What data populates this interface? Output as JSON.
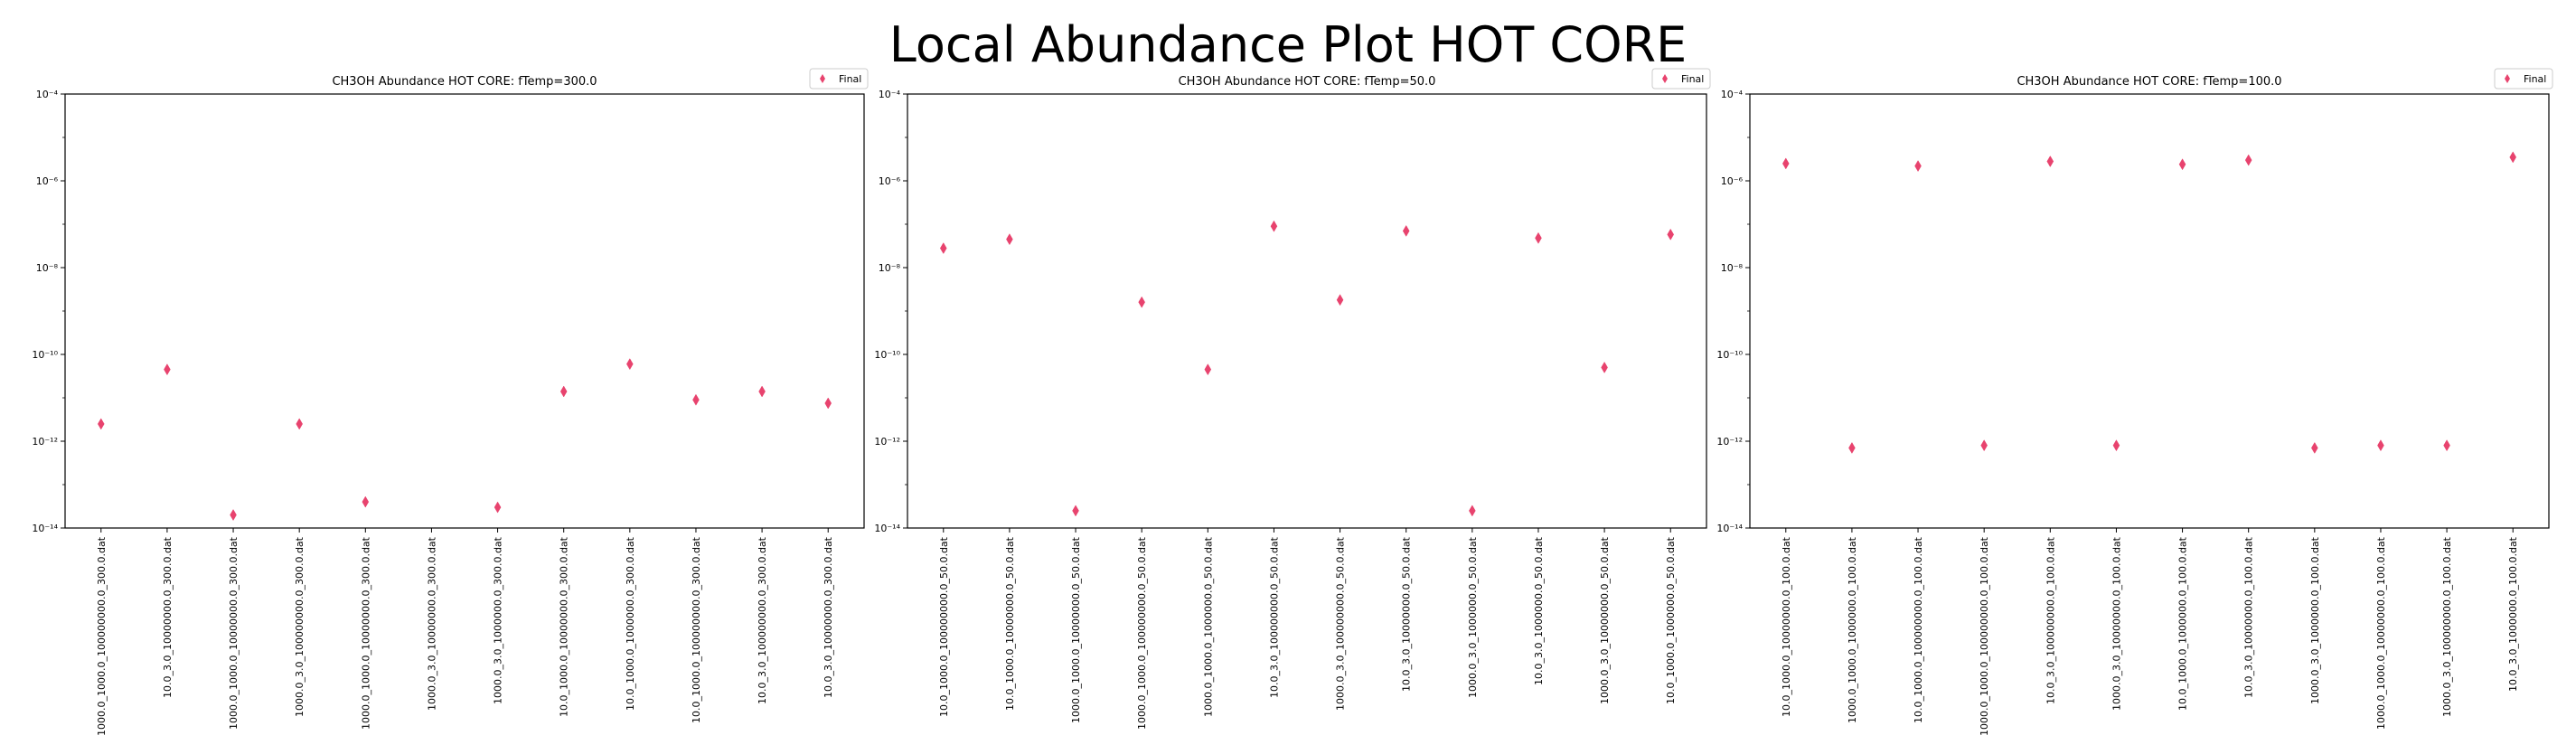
{
  "figure": {
    "suptitle": "Local Abundance Plot HOT CORE"
  },
  "chart_data": [
    {
      "type": "scatter",
      "title": "CH3OH Abundance HOT CORE: fTemp=300.0",
      "xlabel": "",
      "ylabel": "",
      "yscale": "log",
      "ylim": [
        1e-14,
        0.0001
      ],
      "y_ticks": [
        1e-14,
        1e-12,
        1e-10,
        1e-08,
        1e-06,
        0.0001
      ],
      "y_tick_labels": [
        "10⁻¹⁴",
        "10⁻¹²",
        "10⁻¹⁰",
        "10⁻⁸",
        "10⁻⁶",
        "10⁻⁴"
      ],
      "legend": {
        "position": "top-right",
        "entries": [
          "Final"
        ]
      },
      "marker_color": "#e8436e",
      "categories": [
        "1000.0_1000.0_100000000.0_300.0.dat",
        "10.0_3.0_10000000.0_300.0.dat",
        "1000.0_1000.0_10000000.0_300.0.dat",
        "1000.0_3.0_100000000.0_300.0.dat",
        "1000.0_1000.0_10000000.0_300.0.dat",
        "1000.0_3.0_10000000.0_300.0.dat",
        "1000.0_3.0_1000000.0_300.0.dat",
        "10.0_1000.0_10000000.0_300.0.dat",
        "10.0_1000.0_1000000.0_300.0.dat",
        "10.0_1000.0_100000000.0_300.0.dat",
        "10.0_3.0_100000000.0_300.0.dat",
        "10.0_3.0_10000000.0_300.0.dat"
      ],
      "series": [
        {
          "name": "Final",
          "values": [
            2.5e-12,
            4.5e-11,
            2e-14,
            2.5e-12,
            4e-14,
            null,
            3e-14,
            1.4e-11,
            6e-11,
            9e-12,
            1.4e-11,
            7.5e-12
          ]
        }
      ]
    },
    {
      "type": "scatter",
      "title": "CH3OH Abundance HOT CORE: fTemp=50.0",
      "xlabel": "",
      "ylabel": "",
      "yscale": "log",
      "ylim": [
        1e-14,
        0.0001
      ],
      "y_ticks": [
        1e-14,
        1e-12,
        1e-10,
        1e-08,
        1e-06,
        0.0001
      ],
      "y_tick_labels": [
        "10⁻¹⁴",
        "10⁻¹²",
        "10⁻¹⁰",
        "10⁻⁸",
        "10⁻⁶",
        "10⁻⁴"
      ],
      "legend": {
        "position": "top-right",
        "entries": [
          "Final"
        ]
      },
      "marker_color": "#e8436e",
      "categories": [
        "10.0_1000.0_100000000.0_50.0.dat",
        "10.0_1000.0_10000000.0_50.0.dat",
        "1000.0_1000.0_10000000.0_50.0.dat",
        "1000.0_1000.0_100000000.0_50.0.dat",
        "1000.0_1000.0_1000000.0_50.0.dat",
        "10.0_3.0_100000000.0_50.0.dat",
        "1000.0_3.0_100000000.0_50.0.dat",
        "10.0_3.0_10000000.0_50.0.dat",
        "1000.0_3.0_1000000.0_50.0.dat",
        "10.0_3.0_1000000.0_50.0.dat",
        "1000.0_3.0_10000000.0_50.0.dat",
        "10.0_1000.0_1000000.0_50.0.dat"
      ],
      "series": [
        {
          "name": "Final",
          "values": [
            2.8e-08,
            4.5e-08,
            2.5e-14,
            1.6e-09,
            4.5e-11,
            9e-08,
            1.8e-09,
            7e-08,
            2.5e-14,
            4.8e-08,
            5e-11,
            5.8e-08
          ]
        }
      ]
    },
    {
      "type": "scatter",
      "title": "CH3OH Abundance HOT CORE: fTemp=100.0",
      "xlabel": "",
      "ylabel": "",
      "yscale": "log",
      "ylim": [
        1e-14,
        0.0001
      ],
      "y_ticks": [
        1e-14,
        1e-12,
        1e-10,
        1e-08,
        1e-06,
        0.0001
      ],
      "y_tick_labels": [
        "10⁻¹⁴",
        "10⁻¹²",
        "10⁻¹⁰",
        "10⁻⁸",
        "10⁻⁶",
        "10⁻⁴"
      ],
      "legend": {
        "position": "top-right",
        "entries": [
          "Final"
        ]
      },
      "marker_color": "#e8436e",
      "categories": [
        "10.0_1000.0_10000000.0_100.0.dat",
        "1000.0_1000.0_1000000.0_100.0.dat",
        "10.0_1000.0_100000000.0_100.0.dat",
        "1000.0_1000.0_100000000.0_100.0.dat",
        "10.0_3.0_100000000.0_100.0.dat",
        "1000.0_3.0_10000000.0_100.0.dat",
        "10.0_1000.0_1000000.0_100.0.dat",
        "10.0_3.0_10000000.0_100.0.dat",
        "1000.0_3.0_1000000.0_100.0.dat",
        "1000.0_1000.0_10000000.0_100.0.dat",
        "1000.0_3.0_100000000.0_100.0.dat",
        "10.0_3.0_1000000.0_100.0.dat"
      ],
      "series": [
        {
          "name": "Final",
          "values": [
            2.5e-06,
            7e-13,
            2.2e-06,
            8e-13,
            2.8e-06,
            8e-13,
            2.4e-06,
            3e-06,
            7e-13,
            8e-13,
            8e-13,
            3.5e-06
          ]
        }
      ]
    }
  ]
}
